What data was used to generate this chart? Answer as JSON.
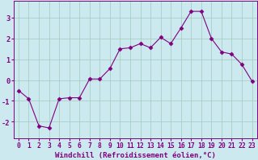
{
  "x": [
    0,
    1,
    2,
    3,
    4,
    5,
    6,
    7,
    8,
    9,
    10,
    11,
    12,
    13,
    14,
    15,
    16,
    17,
    18,
    19,
    20,
    21,
    22,
    23
  ],
  "y": [
    -0.5,
    -0.9,
    -2.2,
    -2.3,
    -0.9,
    -0.85,
    -0.85,
    0.05,
    0.05,
    0.55,
    1.5,
    1.55,
    1.75,
    1.55,
    2.05,
    1.75,
    2.5,
    3.3,
    3.3,
    2.0,
    1.35,
    1.25,
    0.75,
    -0.05
  ],
  "line_color": "#800080",
  "marker": "D",
  "marker_size": 2.5,
  "bg_color": "#cde9f0",
  "grid_color": "#a0ccbb",
  "xlabel": "Windchill (Refroidissement éolien,°C)",
  "xlabel_fontsize": 6.5,
  "tick_fontsize": 5.8,
  "ylim": [
    -2.8,
    3.8
  ],
  "yticks": [
    -2,
    -1,
    0,
    1,
    2,
    3
  ],
  "xlim": [
    -0.5,
    23.5
  ],
  "title": ""
}
